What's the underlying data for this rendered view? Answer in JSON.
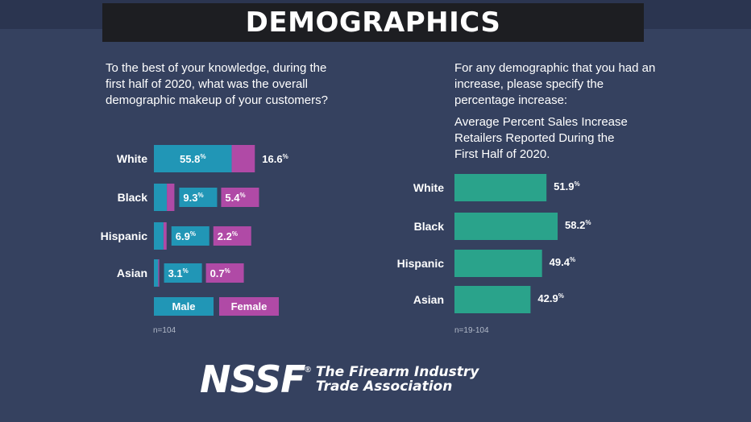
{
  "title": "DEMOGRAPHICS",
  "left_question": "To the best of your knowledge, during the first half of 2020, what was the overall demographic makeup of your customers?",
  "right_question": "For any demographic that you had an increase, please specify the percentage increase:",
  "right_subtitle": "Average Percent Sales Increase Retailers Reported During the First Half of 2020.",
  "left_note": "n=104",
  "right_note": "n=19-104",
  "logo": {
    "mark": "NSSF",
    "reg": "®",
    "line1": "The Firearm Industry",
    "line2": "Trade Association"
  },
  "colors": {
    "male": "#2196b6",
    "female": "#b04aa6",
    "increase": "#2aa38b",
    "background": "#35415f",
    "title_bar": "#1d1e22"
  },
  "chart_data": [
    {
      "type": "bar",
      "orientation": "horizontal",
      "stacked": true,
      "categories": [
        "White",
        "Black",
        "Hispanic",
        "Asian"
      ],
      "series": [
        {
          "name": "Male",
          "values": [
            55.8,
            9.3,
            6.9,
            3.1
          ]
        },
        {
          "name": "Female",
          "values": [
            16.6,
            5.4,
            2.2,
            0.7
          ]
        }
      ],
      "labels": {
        "Male": [
          "55.8%",
          "9.3%",
          "6.9%",
          "3.1%"
        ],
        "Female": [
          "16.6%",
          "5.4%",
          "2.2%",
          "0.7%"
        ]
      },
      "legend": [
        "Male",
        "Female"
      ],
      "legend_position": "bottom"
    },
    {
      "type": "bar",
      "orientation": "horizontal",
      "categories": [
        "White",
        "Black",
        "Hispanic",
        "Asian"
      ],
      "values": [
        51.9,
        58.2,
        49.4,
        42.9
      ],
      "labels": [
        "51.9%",
        "58.2%",
        "49.4%",
        "42.9%"
      ]
    }
  ]
}
